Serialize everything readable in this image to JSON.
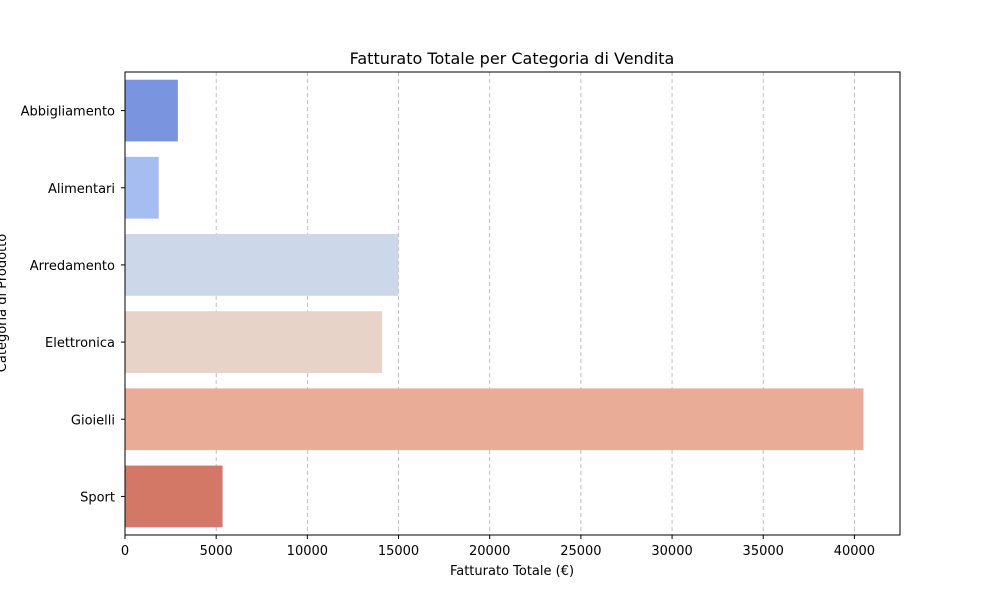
{
  "chart_data": {
    "type": "bar",
    "orientation": "horizontal",
    "title": "Fatturato Totale per Categoria di Vendita",
    "xlabel": "Fatturato Totale (€)",
    "ylabel": "Categoria di Prodotto",
    "categories": [
      "Abbigliamento",
      "Alimentari",
      "Arredamento",
      "Elettronica",
      "Gioielli",
      "Sport"
    ],
    "values": [
      2900,
      1850,
      15000,
      14100,
      40500,
      5350
    ],
    "colors": [
      "#7b94e0",
      "#a6bdf2",
      "#cdd7ea",
      "#e8d3c8",
      "#e9ad97",
      "#d37766"
    ],
    "xlim": [
      0,
      42500
    ],
    "xticks": [
      0,
      5000,
      10000,
      15000,
      20000,
      25000,
      30000,
      35000,
      40000
    ],
    "grid": "x-dashed",
    "legend": "none"
  }
}
